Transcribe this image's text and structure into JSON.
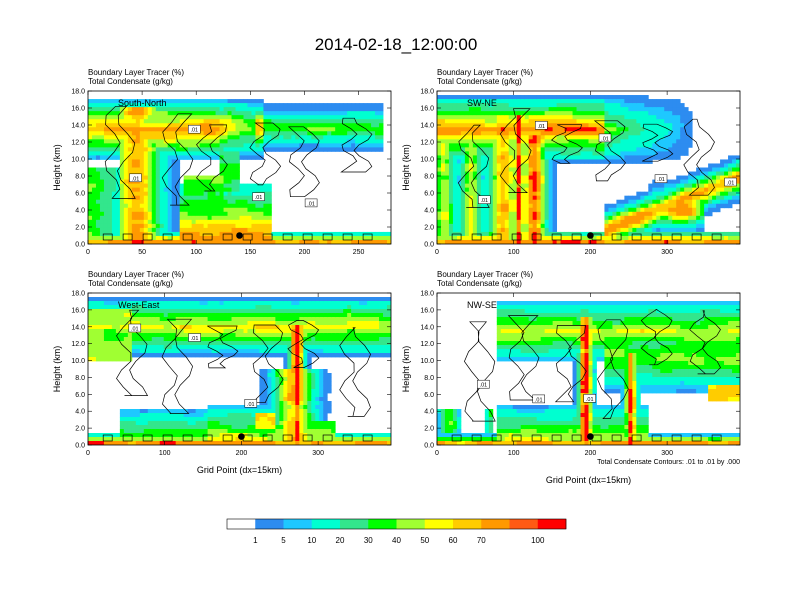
{
  "figure_title": "2014-02-18_12:00:00",
  "chart_data": [
    {
      "type": "heatmap",
      "panel": "top-left",
      "title_lines": [
        "Boundary Layer Tracer    (%)",
        "Total Condensate    (g/kg)"
      ],
      "inset_label": "South-North",
      "ylabel": "Height (km)",
      "xlabel": "",
      "xlim": [
        0,
        280
      ],
      "ylim": [
        0,
        18
      ],
      "xticks": [
        "0",
        "50",
        "100",
        "150",
        "200",
        "250"
      ],
      "yticks": [
        "0.0",
        "2.0",
        "4.0",
        "6.0",
        "8.0",
        "10.0",
        "12.0",
        "14.0",
        "16.0",
        "18.0"
      ],
      "contour_labels": [
        ".01",
        ".01",
        ".01",
        ".01"
      ],
      "marker": [
        140,
        1.0
      ]
    },
    {
      "type": "heatmap",
      "panel": "top-right",
      "title_lines": [
        "Boundary Layer Tracer    (%)",
        "Total Condensate    (g/kg)"
      ],
      "inset_label": "SW-NE",
      "ylabel": "Height (km)",
      "xlabel": "",
      "xlim": [
        0,
        395
      ],
      "ylim": [
        0,
        18
      ],
      "xticks": [
        "0",
        "100",
        "200",
        "300"
      ],
      "yticks": [
        "0.0",
        "2.0",
        "4.0",
        "6.0",
        "8.0",
        "10.0",
        "12.0",
        "14.0",
        "16.0",
        "18.0"
      ],
      "contour_labels": [
        ".01",
        ".01",
        ".01",
        ".01",
        ".01"
      ],
      "marker": [
        200,
        1.0
      ]
    },
    {
      "type": "heatmap",
      "panel": "bottom-left",
      "title_lines": [
        "Boundary Layer Tracer    (%)",
        "Total Condensate    (g/kg)"
      ],
      "inset_label": "West-East",
      "ylabel": "Height (km)",
      "xlabel": "Grid Point (dx=15km)",
      "xlim": [
        0,
        395
      ],
      "ylim": [
        0,
        18
      ],
      "xticks": [
        "0",
        "100",
        "200",
        "300"
      ],
      "yticks": [
        "0.0",
        "2.0",
        "4.0",
        "6.0",
        "8.0",
        "10.0",
        "12.0",
        "14.0",
        "16.0",
        "18.0"
      ],
      "contour_labels": [
        ".01",
        ".01",
        ".01"
      ],
      "marker": [
        200,
        1.0
      ]
    },
    {
      "type": "heatmap",
      "panel": "bottom-right",
      "title_lines": [
        "Boundary Layer Tracer    (%)",
        "Total Condensate    (g/kg)"
      ],
      "inset_label": "NW-SE",
      "ylabel": "Height (km)",
      "xlabel": "Grid Point (dx=15km)",
      "xlim": [
        0,
        395
      ],
      "ylim": [
        0,
        18
      ],
      "xticks": [
        "0",
        "100",
        "200",
        "300"
      ],
      "yticks": [
        "0.0",
        "2.0",
        "4.0",
        "6.0",
        "8.0",
        "10.0",
        "12.0",
        "14.0",
        "16.0",
        "18.0"
      ],
      "contour_labels": [
        ".01",
        ".01",
        ".01"
      ],
      "marker": [
        200,
        1.0
      ],
      "footnote": "Total Condensate Contours: .01 to .01 by .000"
    }
  ],
  "colorbar": {
    "labels": [
      "1",
      "5",
      "10",
      "20",
      "30",
      "40",
      "50",
      "60",
      "70",
      "100"
    ],
    "colors": [
      "#ffffff",
      "#2d8cf0",
      "#1ec8ff",
      "#00ffd0",
      "#33e68c",
      "#00ff00",
      "#a0ff32",
      "#ffff00",
      "#ffcc00",
      "#ff9900",
      "#ff5a14",
      "#ff0000"
    ]
  }
}
